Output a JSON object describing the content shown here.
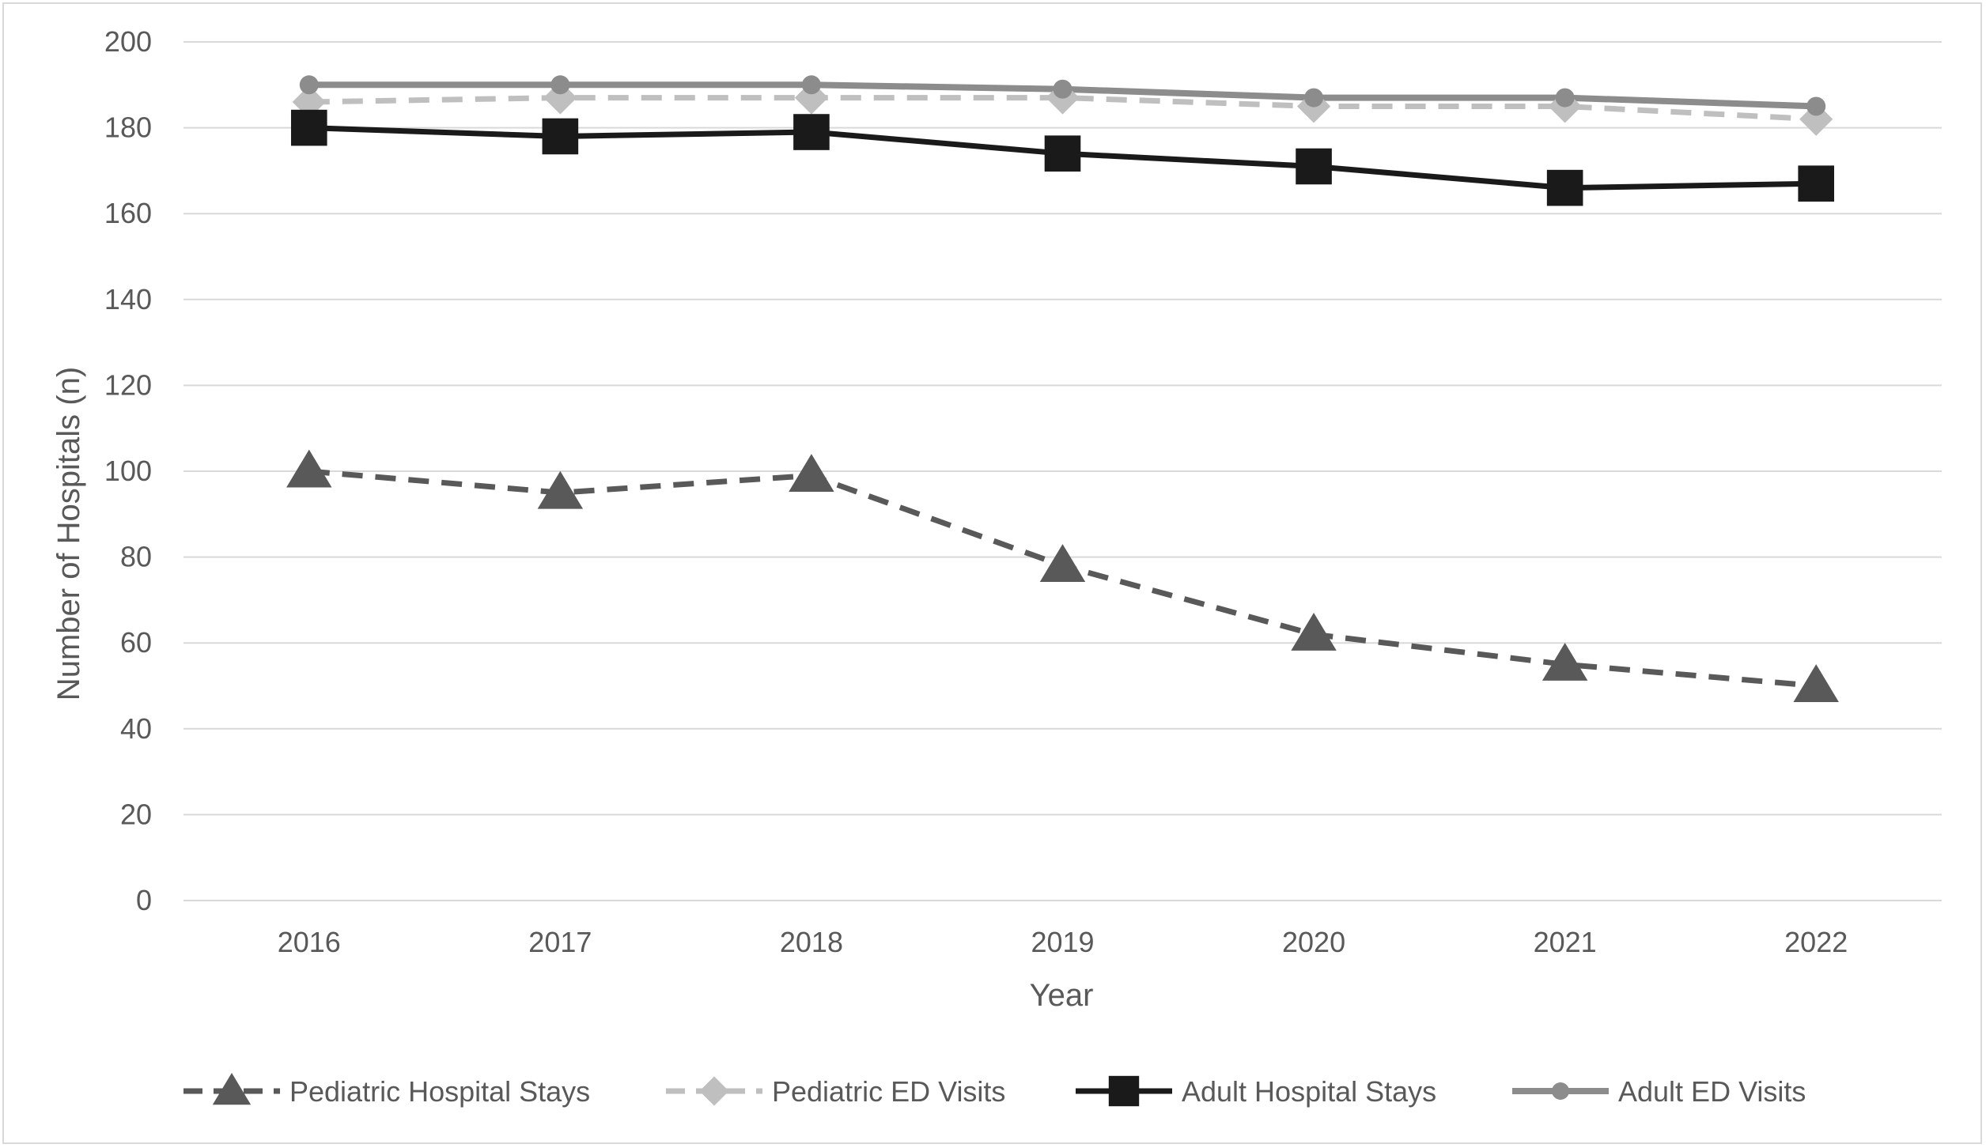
{
  "chart_data": {
    "type": "line",
    "title": "",
    "xlabel": "Year",
    "ylabel": "Number of Hospitals (n)",
    "categories": [
      "2016",
      "2017",
      "2018",
      "2019",
      "2020",
      "2021",
      "2022"
    ],
    "ylim": [
      0,
      200
    ],
    "yticks": [
      "0",
      "20",
      "40",
      "60",
      "80",
      "100",
      "120",
      "140",
      "160",
      "180",
      "200"
    ],
    "grid": true,
    "legend_position": "bottom",
    "series": [
      {
        "name": "Pediatric Hospital Stays",
        "values": [
          100,
          95,
          99,
          78,
          62,
          55,
          50
        ],
        "color": "#595959",
        "line_style": "dashed",
        "marker": "triangle"
      },
      {
        "name": "Pediatric ED Visits",
        "values": [
          186,
          187,
          187,
          187,
          185,
          185,
          182
        ],
        "color": "#bfbfbf",
        "line_style": "dashed",
        "marker": "diamond"
      },
      {
        "name": "Adult Hospital Stays",
        "values": [
          180,
          178,
          179,
          174,
          171,
          166,
          167
        ],
        "color": "#1a1a1a",
        "line_style": "solid",
        "marker": "square"
      },
      {
        "name": "Adult ED Visits",
        "values": [
          190,
          190,
          190,
          189,
          187,
          187,
          185
        ],
        "color": "#8c8c8c",
        "line_style": "solid",
        "marker": "circle"
      }
    ]
  }
}
